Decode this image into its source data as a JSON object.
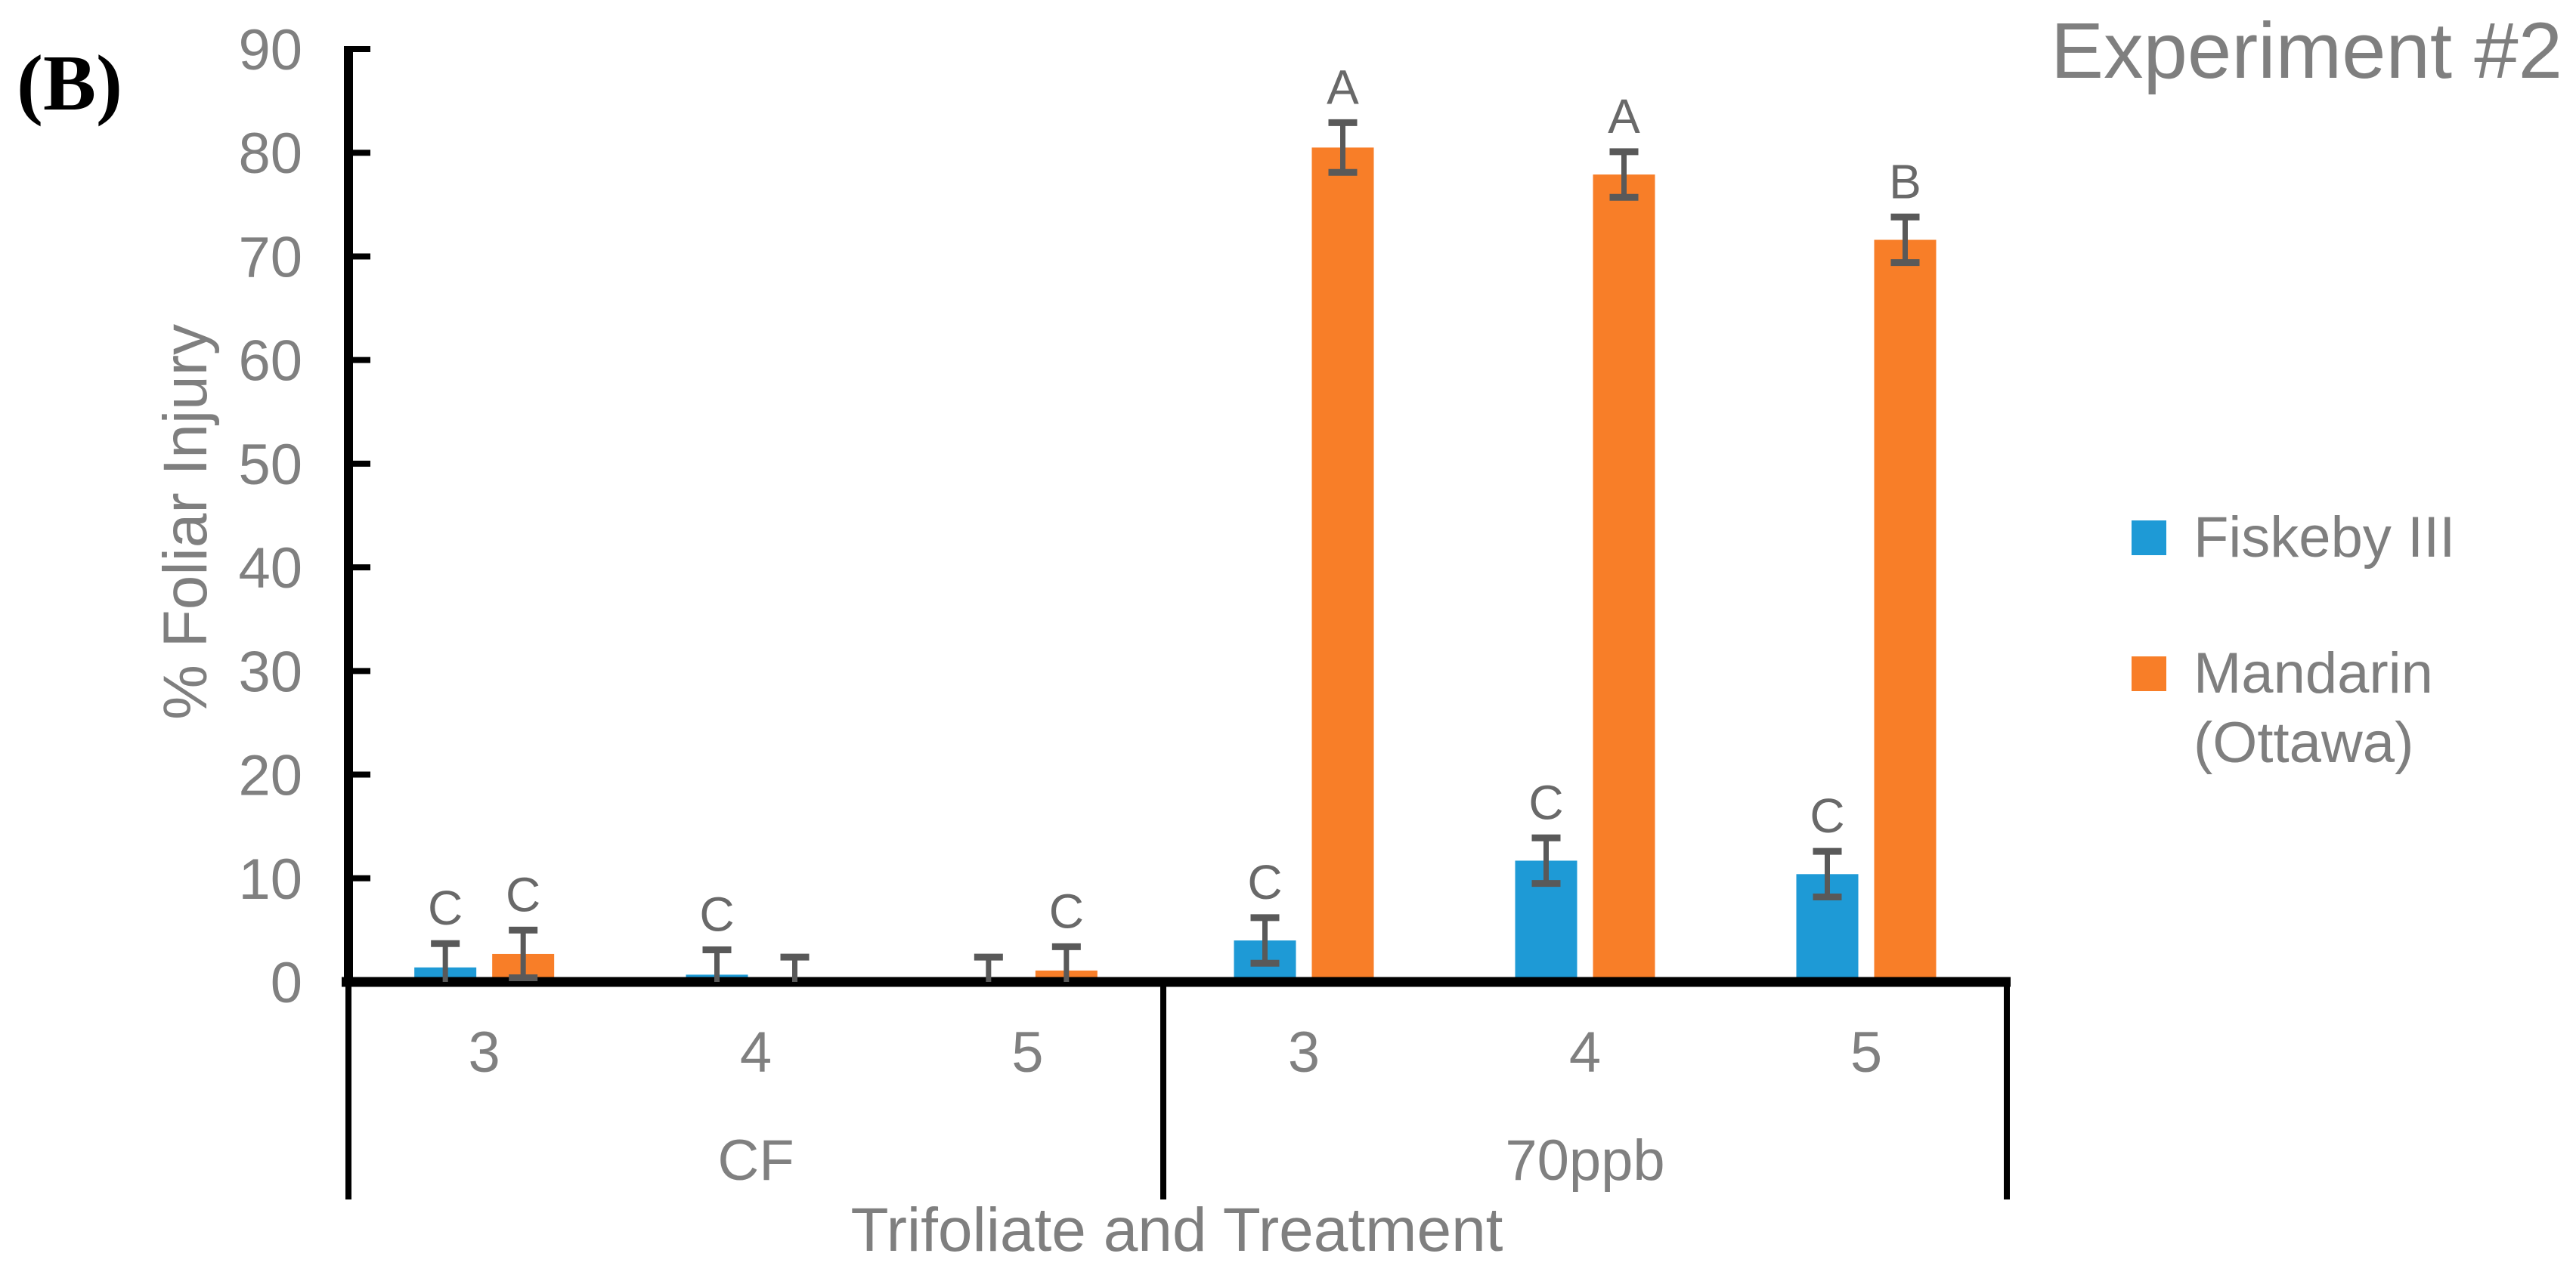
{
  "panel_label": "(B)",
  "title": "Experiment #2",
  "colors": {
    "series_blue": "#1E9AD6",
    "series_orange": "#F87E28",
    "axis_line": "#000000",
    "tick_label": "#808080",
    "error_bar": "#595959",
    "letter": "#696969",
    "title_gray": "#7f7f7f"
  },
  "legend": {
    "position": "right",
    "items": [
      {
        "label": "Fiskeby III",
        "color": "#1E9AD6"
      },
      {
        "label": "Mandarin (Ottawa)",
        "color": "#F87E28"
      }
    ]
  },
  "y_axis": {
    "title": "% Foliar Injury",
    "min": 0,
    "max": 90,
    "ticks": [
      0,
      10,
      20,
      30,
      40,
      50,
      60,
      70,
      80,
      90
    ]
  },
  "x_axis": {
    "title": "Trifoliate and Treatment",
    "groups": [
      {
        "label": "CF",
        "trifoliates": [
          "3",
          "4",
          "5"
        ]
      },
      {
        "label": "70ppb",
        "trifoliates": [
          "3",
          "4",
          "5"
        ]
      }
    ]
  },
  "chart_data": {
    "type": "bar",
    "title": "Experiment #2",
    "panel_label": "(B)",
    "xlabel": "Trifoliate and Treatment",
    "ylabel": "% Foliar Injury",
    "ylim": [
      0,
      90
    ],
    "ytick_interval": 10,
    "grid": false,
    "legend_position": "right",
    "group_labels": [
      "CF",
      "70ppb"
    ],
    "categories": [
      "3",
      "4",
      "5",
      "3",
      "4",
      "5"
    ],
    "series": [
      {
        "name": "Fiskeby III",
        "color": "#1E9AD6",
        "values": [
          1.4,
          0.7,
          0,
          4.0,
          11.7,
          10.4
        ],
        "errors": [
          2.3,
          2.4,
          2.4,
          2.2,
          2.2,
          2.2
        ],
        "letters": [
          "C",
          "C",
          "",
          "C",
          "C",
          "C"
        ]
      },
      {
        "name": "Mandarin (Ottawa)",
        "color": "#F87E28",
        "values": [
          2.7,
          0,
          1.1,
          80.5,
          77.9,
          71.6
        ],
        "errors": [
          2.3,
          2.4,
          2.3,
          2.4,
          2.2,
          2.2
        ],
        "letters": [
          "C",
          "",
          "C",
          "A",
          "A",
          "B"
        ]
      }
    ]
  }
}
